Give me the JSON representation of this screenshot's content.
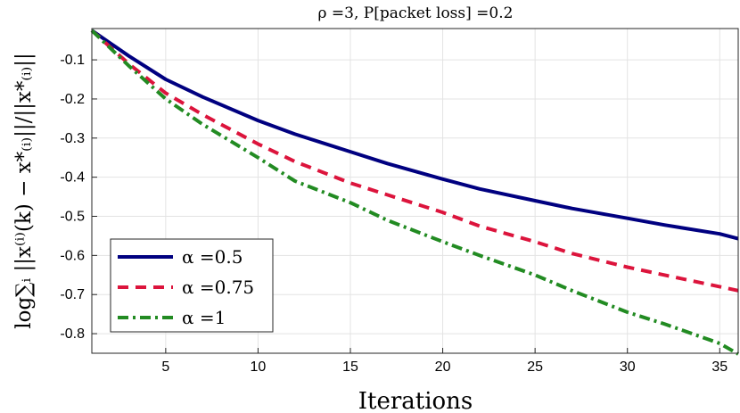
{
  "chart_data": {
    "type": "line",
    "title": "ρ =3, P[packet loss] =0.2",
    "xlabel": "Iterations",
    "ylabel": "log∑ᵢ ||x⁽ⁱ⁾(k) − x*₍ᵢ₎||/||x*₍ᵢ₎||",
    "xlim": [
      1,
      36
    ],
    "ylim": [
      -0.85,
      -0.02
    ],
    "xticks": [
      5,
      10,
      15,
      20,
      25,
      30,
      35
    ],
    "yticks": [
      -0.1,
      -0.2,
      -0.3,
      -0.4,
      -0.5,
      -0.6,
      -0.7,
      -0.8
    ],
    "ytick_labels": [
      "-0.1",
      "-0.2",
      "-0.3",
      "-0.4",
      "-0.5",
      "-0.6",
      "-0.7",
      "-0.8"
    ],
    "grid": true,
    "legend_position": "bottom-left",
    "x": [
      1,
      3,
      5,
      7,
      10,
      12,
      15,
      17,
      20,
      22,
      25,
      27,
      30,
      32,
      35,
      36
    ],
    "series": [
      {
        "name": "α =0.5",
        "color": "#000080",
        "style": "solid",
        "values": [
          -0.025,
          -0.09,
          -0.15,
          -0.195,
          -0.255,
          -0.29,
          -0.335,
          -0.365,
          -0.405,
          -0.43,
          -0.46,
          -0.48,
          -0.505,
          -0.522,
          -0.545,
          -0.557
        ]
      },
      {
        "name": "α =0.75",
        "color": "#dc143c",
        "style": "dashed",
        "values": [
          -0.025,
          -0.11,
          -0.185,
          -0.24,
          -0.315,
          -0.36,
          -0.415,
          -0.445,
          -0.49,
          -0.525,
          -0.565,
          -0.595,
          -0.63,
          -0.65,
          -0.68,
          -0.69
        ]
      },
      {
        "name": "α =1",
        "color": "#228b22",
        "style": "dashdot",
        "values": [
          -0.025,
          -0.115,
          -0.2,
          -0.265,
          -0.35,
          -0.41,
          -0.465,
          -0.51,
          -0.565,
          -0.6,
          -0.65,
          -0.69,
          -0.745,
          -0.775,
          -0.825,
          -0.852
        ]
      }
    ]
  }
}
